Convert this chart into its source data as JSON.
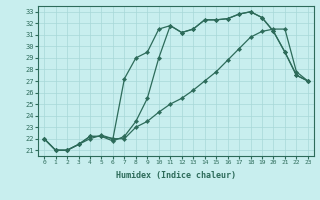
{
  "xlabel": "Humidex (Indice chaleur)",
  "background_color": "#c8eeee",
  "line_color": "#2d6b5a",
  "grid_color": "#a8d8d8",
  "xlim": [
    -0.5,
    23.5
  ],
  "ylim": [
    20.5,
    33.5
  ],
  "xticks": [
    0,
    1,
    2,
    3,
    4,
    5,
    6,
    7,
    8,
    9,
    10,
    11,
    12,
    13,
    14,
    15,
    16,
    17,
    18,
    19,
    20,
    21,
    22,
    23
  ],
  "yticks": [
    21,
    22,
    23,
    24,
    25,
    26,
    27,
    28,
    29,
    30,
    31,
    32,
    33
  ],
  "line1_x": [
    0,
    1,
    2,
    3,
    4,
    5,
    6,
    7,
    8,
    9,
    10,
    11,
    12,
    13,
    14,
    15,
    16,
    17,
    18,
    19,
    20,
    21,
    22,
    23
  ],
  "line1_y": [
    22.0,
    21.0,
    21.0,
    21.5,
    22.2,
    22.2,
    22.0,
    27.2,
    29.0,
    29.5,
    31.5,
    31.8,
    31.2,
    31.5,
    32.3,
    32.3,
    32.4,
    32.8,
    33.0,
    32.5,
    31.3,
    29.5,
    27.5,
    27.0
  ],
  "line2_x": [
    0,
    1,
    2,
    3,
    4,
    5,
    6,
    7,
    8,
    9,
    10,
    11,
    12,
    13,
    14,
    15,
    16,
    17,
    18,
    19,
    20,
    21,
    22,
    23
  ],
  "line2_y": [
    22.0,
    21.0,
    21.0,
    21.5,
    22.2,
    22.2,
    21.8,
    22.2,
    23.5,
    25.5,
    29.0,
    31.8,
    31.2,
    31.5,
    32.3,
    32.3,
    32.4,
    32.8,
    33.0,
    32.5,
    31.3,
    29.5,
    27.5,
    27.0
  ],
  "line3_x": [
    0,
    1,
    2,
    3,
    4,
    5,
    6,
    7,
    8,
    9,
    10,
    11,
    12,
    13,
    14,
    15,
    16,
    17,
    18,
    19,
    20,
    21,
    22,
    23
  ],
  "line3_y": [
    22.0,
    21.0,
    21.0,
    21.5,
    22.0,
    22.3,
    22.0,
    22.0,
    23.0,
    23.5,
    24.3,
    25.0,
    25.5,
    26.2,
    27.0,
    27.8,
    28.8,
    29.8,
    30.8,
    31.3,
    31.5,
    31.5,
    27.8,
    27.0
  ]
}
